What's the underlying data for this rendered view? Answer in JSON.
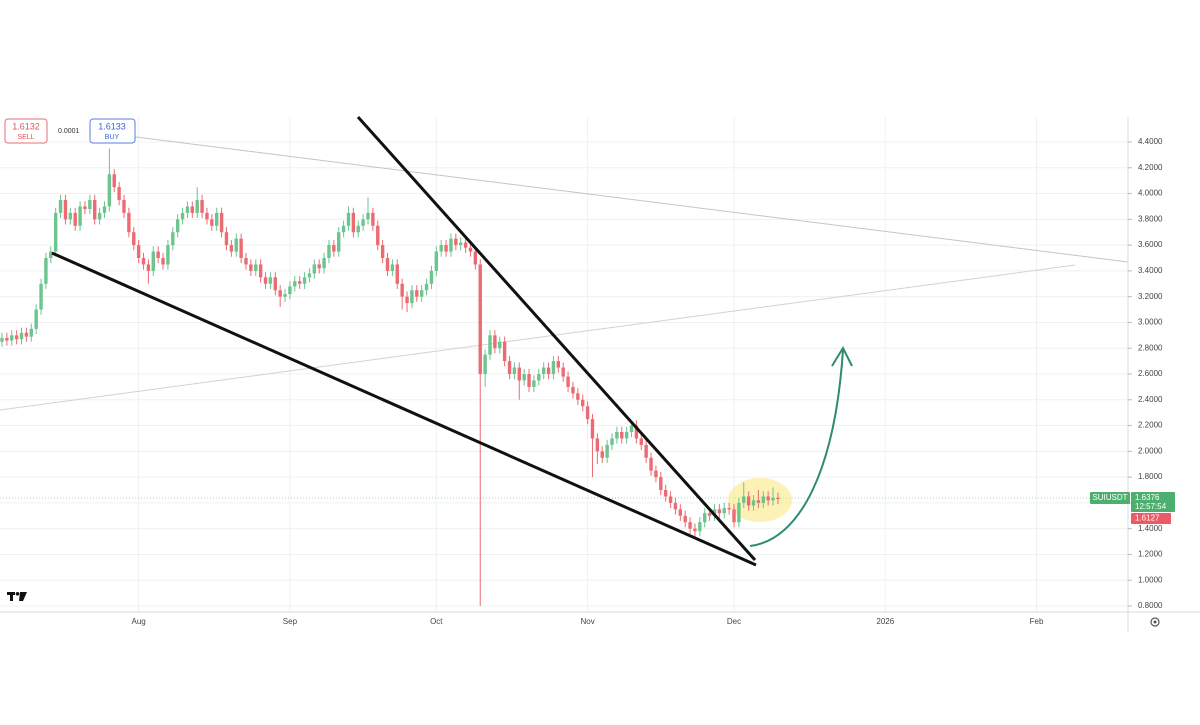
{
  "chart_data": {
    "type": "candlestick",
    "up_color": "#6cc48e",
    "down_color": "#ec6b73",
    "grid": true,
    "ylim": [
      0.8,
      4.4
    ],
    "yticks": [
      {
        "value": 0.8,
        "label": "0.8000"
      },
      {
        "value": 1.0,
        "label": "1.0000"
      },
      {
        "value": 1.2,
        "label": "1.2000"
      },
      {
        "value": 1.4,
        "label": "1.4000"
      },
      {
        "value": 1.6,
        "label": "1.6000"
      },
      {
        "value": 1.8,
        "label": "1.8000"
      },
      {
        "value": 2.0,
        "label": "2.0000"
      },
      {
        "value": 2.2,
        "label": "2.2000"
      },
      {
        "value": 2.4,
        "label": "2.4000"
      },
      {
        "value": 2.6,
        "label": "2.6000"
      },
      {
        "value": 2.8,
        "label": "2.8000"
      },
      {
        "value": 3.0,
        "label": "3.0000"
      },
      {
        "value": 3.2,
        "label": "3.2000"
      },
      {
        "value": 3.4,
        "label": "3.4000"
      },
      {
        "value": 3.6,
        "label": "3.6000"
      },
      {
        "value": 3.8,
        "label": "3.8000"
      },
      {
        "value": 4.0,
        "label": "4.0000"
      },
      {
        "value": 4.2,
        "label": "4.2000"
      },
      {
        "value": 4.4,
        "label": "4.4000"
      }
    ],
    "categories": [
      null,
      null,
      null,
      null,
      null,
      null,
      null,
      null,
      null,
      null,
      null,
      null,
      null,
      null,
      null,
      null,
      null,
      null,
      null,
      null,
      null,
      null,
      null,
      null,
      null,
      null,
      null,
      null,
      "Aug",
      null,
      null,
      null,
      null,
      null,
      null,
      null,
      null,
      null,
      null,
      null,
      null,
      null,
      null,
      null,
      null,
      null,
      null,
      null,
      null,
      null,
      null,
      null,
      null,
      null,
      null,
      null,
      null,
      null,
      null,
      "Sep",
      null,
      null,
      null,
      null,
      null,
      null,
      null,
      null,
      null,
      null,
      null,
      null,
      null,
      null,
      null,
      null,
      null,
      null,
      null,
      null,
      null,
      null,
      null,
      null,
      null,
      null,
      null,
      null,
      null,
      "Oct",
      null,
      null,
      null,
      null,
      null,
      null,
      null,
      null,
      null,
      null,
      null,
      null,
      null,
      null,
      null,
      null,
      null,
      null,
      null,
      null,
      null,
      null,
      null,
      null,
      null,
      null,
      null,
      null,
      null,
      null,
      "Nov",
      null,
      null,
      null,
      null,
      null,
      null,
      null,
      null,
      null,
      null,
      null,
      null,
      null,
      null,
      null,
      null,
      null,
      null,
      null,
      null,
      null,
      null,
      null,
      null,
      null,
      null,
      null,
      null,
      null,
      "Dec",
      null,
      null,
      null,
      null,
      null,
      null,
      null,
      null,
      null,
      null,
      null,
      null,
      null,
      null,
      null,
      null,
      null,
      null,
      null,
      null,
      null,
      null,
      null,
      null,
      null,
      null,
      null,
      null,
      null,
      null,
      "2026",
      null,
      null,
      null,
      null,
      null,
      null,
      null,
      null,
      null,
      null,
      null,
      null,
      null,
      null,
      null,
      null,
      null,
      null,
      null,
      null,
      null,
      null,
      null,
      null,
      null,
      null,
      null,
      null,
      null,
      null,
      "Feb"
    ],
    "open": [
      2.85,
      2.88,
      2.86,
      2.9,
      2.87,
      2.92,
      2.89,
      2.95,
      3.1,
      3.3,
      3.5,
      3.55,
      3.85,
      3.95,
      3.8,
      3.85,
      3.75,
      3.9,
      3.88,
      3.95,
      3.8,
      3.85,
      3.9,
      4.15,
      4.05,
      3.95,
      3.85,
      3.7,
      3.6,
      3.5,
      3.45,
      3.4,
      3.55,
      3.5,
      3.45,
      3.6,
      3.7,
      3.8,
      3.85,
      3.9,
      3.85,
      3.95,
      3.85,
      3.8,
      3.75,
      3.85,
      3.7,
      3.6,
      3.55,
      3.65,
      3.5,
      3.45,
      3.4,
      3.45,
      3.35,
      3.3,
      3.35,
      3.25,
      3.2,
      3.22,
      3.28,
      3.32,
      3.3,
      3.35,
      3.38,
      3.45,
      3.42,
      3.5,
      3.6,
      3.55,
      3.7,
      3.75,
      3.85,
      3.7,
      3.75,
      3.8,
      3.85,
      3.75,
      3.6,
      3.5,
      3.4,
      3.45,
      3.3,
      3.2,
      3.15,
      3.25,
      3.2,
      3.25,
      3.3,
      3.4,
      3.55,
      3.6,
      3.55,
      3.65,
      3.6,
      3.62,
      3.58,
      3.55,
      3.45,
      2.6,
      2.75,
      2.9,
      2.8,
      2.85,
      2.7,
      2.6,
      2.65,
      2.55,
      2.6,
      2.5,
      2.55,
      2.6,
      2.65,
      2.6,
      2.7,
      2.65,
      2.58,
      2.5,
      2.45,
      2.4,
      2.35,
      2.25,
      2.1,
      2.0,
      1.95,
      2.05,
      2.1,
      2.15,
      2.1,
      2.15,
      2.2,
      2.1,
      2.05,
      1.95,
      1.85,
      1.8,
      1.7,
      1.65,
      1.6,
      1.55,
      1.5,
      1.45,
      1.4,
      1.38,
      1.45,
      1.52,
      1.5,
      1.55,
      1.52,
      1.56,
      1.55,
      1.45,
      1.6,
      1.65,
      1.58,
      1.62,
      1.6,
      1.65,
      1.62,
      1.64,
      null,
      null,
      null,
      null,
      null,
      null,
      null,
      null,
      null,
      null,
      null,
      null,
      null,
      null,
      null,
      null,
      null,
      null,
      null,
      null,
      null,
      null,
      null,
      null,
      null,
      null,
      null,
      null,
      null,
      null,
      null,
      null,
      null,
      null,
      null,
      null,
      null,
      null,
      null,
      null,
      null,
      null,
      null,
      null,
      null,
      null,
      null,
      null,
      null,
      null,
      null,
      null,
      null
    ],
    "high": [
      2.92,
      2.92,
      2.94,
      2.94,
      2.96,
      2.96,
      2.99,
      3.14,
      3.34,
      3.54,
      3.59,
      3.89,
      3.99,
      3.99,
      3.89,
      3.89,
      3.94,
      3.94,
      3.99,
      3.99,
      3.89,
      3.94,
      4.35,
      4.19,
      4.09,
      3.99,
      3.89,
      3.74,
      3.64,
      3.54,
      3.49,
      3.59,
      3.59,
      3.54,
      3.64,
      3.74,
      3.84,
      3.89,
      3.94,
      3.94,
      4.05,
      3.99,
      3.89,
      3.84,
      3.89,
      3.89,
      3.74,
      3.64,
      3.69,
      3.69,
      3.54,
      3.49,
      3.49,
      3.49,
      3.39,
      3.39,
      3.39,
      3.29,
      3.26,
      3.32,
      3.36,
      3.36,
      3.39,
      3.42,
      3.49,
      3.49,
      3.54,
      3.64,
      3.64,
      3.74,
      3.79,
      3.9,
      3.89,
      3.79,
      3.84,
      3.97,
      3.89,
      3.79,
      3.64,
      3.54,
      3.49,
      3.49,
      3.34,
      3.24,
      3.29,
      3.29,
      3.29,
      3.34,
      3.44,
      3.59,
      3.64,
      3.64,
      3.69,
      3.69,
      3.66,
      3.66,
      3.62,
      3.59,
      3.49,
      2.79,
      2.94,
      2.94,
      2.89,
      2.89,
      2.74,
      2.69,
      2.69,
      2.64,
      2.64,
      2.59,
      2.64,
      2.69,
      2.69,
      2.74,
      2.74,
      2.69,
      2.62,
      2.54,
      2.49,
      2.44,
      2.39,
      2.29,
      2.14,
      2.04,
      2.09,
      2.14,
      2.19,
      2.19,
      2.19,
      2.24,
      2.24,
      2.14,
      2.09,
      1.99,
      1.89,
      1.84,
      1.74,
      1.69,
      1.64,
      1.59,
      1.54,
      1.49,
      1.44,
      1.49,
      1.56,
      1.56,
      1.59,
      1.59,
      1.6,
      1.6,
      1.59,
      1.64,
      1.76,
      1.69,
      1.66,
      1.7,
      1.69,
      1.69,
      1.72,
      1.68,
      null,
      null,
      null,
      null,
      null,
      null,
      null,
      null,
      null,
      null,
      null,
      null,
      null,
      null,
      null,
      null,
      null,
      null,
      null,
      null,
      null,
      null,
      null,
      null,
      null,
      null,
      null,
      null,
      null,
      null,
      null,
      null,
      null,
      null,
      null,
      null,
      null,
      null,
      null,
      null,
      null,
      null,
      null,
      null,
      null,
      null,
      null,
      null,
      null,
      null,
      null,
      null,
      null
    ],
    "low": [
      2.81,
      2.82,
      2.82,
      2.83,
      2.83,
      2.85,
      2.85,
      2.91,
      3.06,
      3.26,
      3.46,
      3.51,
      3.81,
      3.76,
      3.76,
      3.71,
      3.71,
      3.84,
      3.84,
      3.76,
      3.76,
      3.81,
      3.86,
      4.01,
      3.91,
      3.81,
      3.66,
      3.56,
      3.46,
      3.41,
      3.3,
      3.36,
      3.46,
      3.41,
      3.41,
      3.56,
      3.66,
      3.76,
      3.81,
      3.81,
      3.81,
      3.81,
      3.76,
      3.71,
      3.71,
      3.66,
      3.56,
      3.51,
      3.51,
      3.46,
      3.41,
      3.36,
      3.36,
      3.31,
      3.26,
      3.26,
      3.21,
      3.12,
      3.16,
      3.18,
      3.24,
      3.26,
      3.26,
      3.31,
      3.34,
      3.38,
      3.38,
      3.46,
      3.51,
      3.51,
      3.66,
      3.71,
      3.66,
      3.66,
      3.71,
      3.76,
      3.71,
      3.56,
      3.46,
      3.36,
      3.36,
      3.26,
      3.1,
      3.08,
      3.11,
      3.16,
      3.16,
      3.21,
      3.26,
      3.36,
      3.51,
      3.51,
      3.51,
      3.56,
      3.56,
      3.54,
      3.51,
      3.41,
      0.8,
      2.5,
      2.71,
      2.76,
      2.76,
      2.66,
      2.56,
      2.56,
      2.4,
      2.51,
      2.46,
      2.46,
      2.51,
      2.56,
      2.56,
      2.56,
      2.61,
      2.54,
      2.46,
      2.41,
      2.36,
      2.31,
      2.21,
      1.8,
      1.9,
      1.91,
      1.91,
      2.01,
      2.06,
      2.06,
      2.06,
      2.11,
      2.06,
      2.01,
      1.91,
      1.81,
      1.76,
      1.66,
      1.61,
      1.56,
      1.51,
      1.46,
      1.41,
      1.36,
      1.34,
      1.34,
      1.41,
      1.46,
      1.46,
      1.48,
      1.48,
      1.51,
      1.41,
      1.41,
      1.56,
      1.54,
      1.54,
      1.56,
      1.56,
      1.58,
      1.58,
      1.59,
      null,
      null,
      null,
      null,
      null,
      null,
      null,
      null,
      null,
      null,
      null,
      null,
      null,
      null,
      null,
      null,
      null,
      null,
      null,
      null,
      null,
      null,
      null,
      null,
      null,
      null,
      null,
      null,
      null,
      null,
      null,
      null,
      null,
      null,
      null,
      null,
      null,
      null,
      null,
      null,
      null,
      null,
      null,
      null,
      null,
      null,
      null,
      null,
      null,
      null,
      null,
      null,
      null
    ],
    "close": [
      2.88,
      2.86,
      2.9,
      2.87,
      2.92,
      2.89,
      2.95,
      3.1,
      3.3,
      3.5,
      3.55,
      3.85,
      3.95,
      3.8,
      3.85,
      3.75,
      3.9,
      3.88,
      3.95,
      3.8,
      3.85,
      3.9,
      4.15,
      4.05,
      3.95,
      3.85,
      3.7,
      3.6,
      3.5,
      3.45,
      3.4,
      3.55,
      3.5,
      3.45,
      3.6,
      3.7,
      3.8,
      3.85,
      3.9,
      3.85,
      3.95,
      3.85,
      3.8,
      3.75,
      3.85,
      3.7,
      3.6,
      3.55,
      3.65,
      3.5,
      3.45,
      3.4,
      3.45,
      3.35,
      3.3,
      3.35,
      3.25,
      3.2,
      3.22,
      3.28,
      3.32,
      3.3,
      3.35,
      3.38,
      3.45,
      3.42,
      3.5,
      3.6,
      3.55,
      3.7,
      3.75,
      3.85,
      3.7,
      3.75,
      3.8,
      3.85,
      3.75,
      3.6,
      3.5,
      3.4,
      3.45,
      3.3,
      3.2,
      3.15,
      3.25,
      3.2,
      3.25,
      3.3,
      3.4,
      3.55,
      3.6,
      3.55,
      3.65,
      3.6,
      3.62,
      3.58,
      3.55,
      3.45,
      2.6,
      2.75,
      2.9,
      2.8,
      2.85,
      2.7,
      2.6,
      2.65,
      2.55,
      2.6,
      2.5,
      2.55,
      2.6,
      2.65,
      2.6,
      2.7,
      2.65,
      2.58,
      2.5,
      2.45,
      2.4,
      2.35,
      2.25,
      2.1,
      2.0,
      1.95,
      2.05,
      2.1,
      2.15,
      2.1,
      2.15,
      2.2,
      2.1,
      2.05,
      1.95,
      1.85,
      1.8,
      1.7,
      1.65,
      1.6,
      1.55,
      1.5,
      1.45,
      1.4,
      1.38,
      1.45,
      1.52,
      1.5,
      1.55,
      1.52,
      1.56,
      1.55,
      1.45,
      1.6,
      1.65,
      1.58,
      1.62,
      1.6,
      1.65,
      1.62,
      1.64,
      1.63,
      null,
      null,
      null,
      null,
      null,
      null,
      null,
      null,
      null,
      null,
      null,
      null,
      null,
      null,
      null,
      null,
      null,
      null,
      null,
      null,
      null,
      null,
      null,
      null,
      null,
      null,
      null,
      null,
      null,
      null,
      null,
      null,
      null,
      null,
      null,
      null,
      null,
      null,
      null,
      null,
      null,
      null,
      null,
      null,
      null,
      null,
      null,
      null,
      null,
      null,
      null,
      null,
      null
    ],
    "sell": {
      "price": 1.6132,
      "label": "SELL"
    },
    "spread": 0.0001,
    "buy": {
      "price": 1.6133,
      "label": "BUY"
    },
    "last_price": {
      "symbol": "SUIUSDT",
      "price": 1.6376,
      "countdown": "12:57:54"
    },
    "bid_price": 1.6127
  }
}
